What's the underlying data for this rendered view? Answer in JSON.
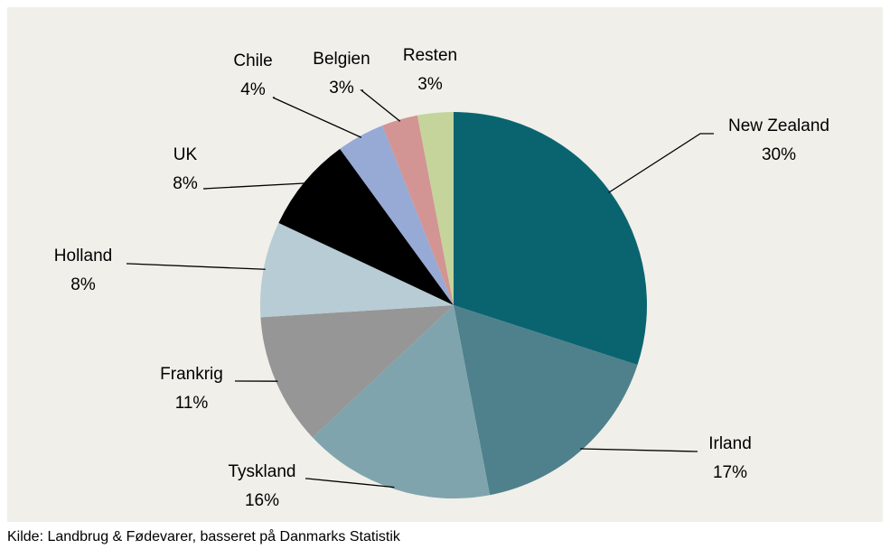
{
  "chart_data": {
    "type": "pie",
    "categories": [
      "New Zealand",
      "Irland",
      "Tyskland",
      "Frankrig",
      "Holland",
      "UK",
      "Chile",
      "Belgien",
      "Resten"
    ],
    "values": [
      30,
      17,
      16,
      11,
      8,
      8,
      4,
      3,
      3
    ],
    "value_labels": [
      "30%",
      "17%",
      "16%",
      "11%",
      "8%",
      "8%",
      "4%",
      "3%",
      "3%"
    ],
    "colors": [
      "#0a6470",
      "#4e818c",
      "#7fa4ad",
      "#969696",
      "#b7ccd4",
      "#000000",
      "#96aad5",
      "#d29593",
      "#c4d49b"
    ],
    "source": "Kilde: Landbrug & Fødevarer, basseret på Danmarks Statistik"
  }
}
